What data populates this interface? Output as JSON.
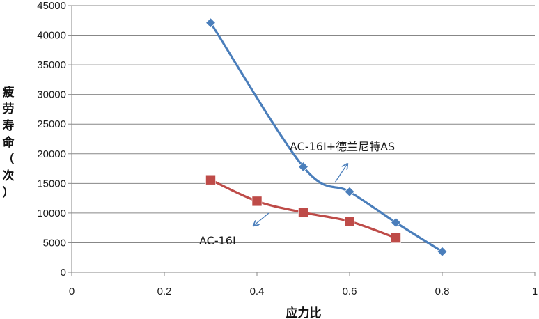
{
  "chart_data": {
    "type": "line",
    "title": "",
    "xlabel": "应力比",
    "ylabel": "疲劳寿命（次）",
    "xlim": [
      0,
      1
    ],
    "ylim": [
      0,
      45000
    ],
    "x_ticks": [
      "0",
      "0.2",
      "0.4",
      "0.6",
      "0.8",
      "1"
    ],
    "y_ticks": [
      "0",
      "5000",
      "10000",
      "15000",
      "20000",
      "25000",
      "30000",
      "35000",
      "40000",
      "45000"
    ],
    "grid": "horizontal",
    "series": [
      {
        "color": "#4a7ebb",
        "marker": "diamond",
        "smooth": true,
        "x": [
          0.3,
          0.5,
          0.6,
          0.7,
          0.8
        ],
        "y": [
          42100,
          17800,
          13600,
          8400,
          3500
        ]
      },
      {
        "color": "#be4b48",
        "marker": "square",
        "smooth": true,
        "x": [
          0.3,
          0.4,
          0.5,
          0.6,
          0.7
        ],
        "y": [
          15600,
          12000,
          10100,
          8600,
          5800
        ]
      }
    ],
    "annotations": [
      {
        "text": "AC-16Ⅰ+德兰尼特AS",
        "series": 0
      },
      {
        "text": "AC-16Ⅰ",
        "series": 1
      }
    ]
  }
}
